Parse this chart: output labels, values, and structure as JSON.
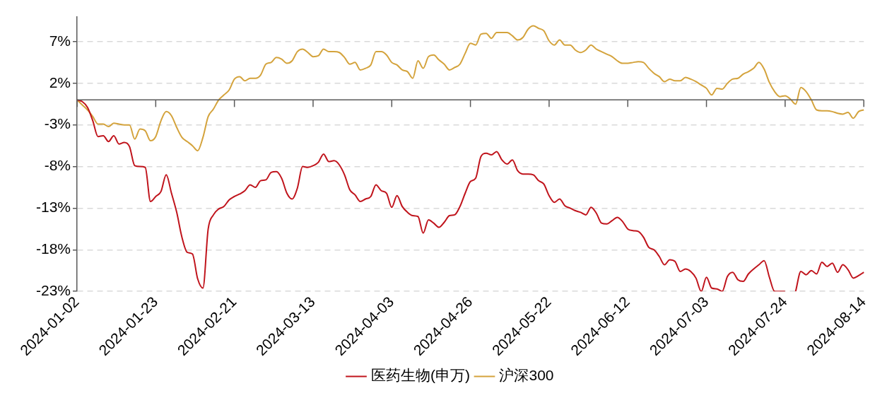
{
  "chart_data": {
    "type": "line",
    "categories": [
      "2024-01-02",
      null,
      null,
      null,
      null,
      null,
      null,
      null,
      null,
      null,
      null,
      null,
      null,
      null,
      null,
      "2024-01-23",
      null,
      null,
      null,
      null,
      null,
      null,
      null,
      null,
      null,
      null,
      null,
      null,
      null,
      null,
      "2024-02-21",
      null,
      null,
      null,
      null,
      null,
      null,
      null,
      null,
      null,
      null,
      null,
      null,
      null,
      null,
      "2024-03-13",
      null,
      null,
      null,
      null,
      null,
      null,
      null,
      null,
      null,
      null,
      null,
      null,
      null,
      null,
      "2024-04-03",
      null,
      null,
      null,
      null,
      null,
      null,
      null,
      null,
      null,
      null,
      null,
      null,
      null,
      null,
      "2024-04-26",
      null,
      null,
      null,
      null,
      null,
      null,
      null,
      null,
      null,
      null,
      null,
      null,
      null,
      null,
      "2024-05-22",
      null,
      null,
      null,
      null,
      null,
      null,
      null,
      null,
      null,
      null,
      null,
      null,
      null,
      null,
      "2024-06-12",
      null,
      null,
      null,
      null,
      null,
      null,
      null,
      null,
      null,
      null,
      null,
      null,
      null,
      null,
      "2024-07-03",
      null,
      null,
      null,
      null,
      null,
      null,
      null,
      null,
      null,
      null,
      null,
      null,
      null,
      null,
      "2024-07-24",
      null,
      null,
      null,
      null,
      null,
      null,
      null,
      null,
      null,
      null,
      null,
      null,
      null,
      null,
      "2024-08-14"
    ],
    "ylim": [
      -23,
      10
    ],
    "yticks": [
      {
        "value": -23,
        "label": "-23%"
      },
      {
        "value": -18,
        "label": "-18%"
      },
      {
        "value": -13,
        "label": "-13%"
      },
      {
        "value": -8,
        "label": "-8%"
      },
      {
        "value": -3,
        "label": "-3%"
      },
      {
        "value": 2,
        "label": "2%"
      },
      {
        "value": 7,
        "label": "7%"
      }
    ],
    "grid": "y",
    "legend": "bottom",
    "marker": "none",
    "line_style": "solid",
    "series": [
      {
        "name": "医药生物(申万)",
        "color": "#c0141c",
        "values": [
          0,
          -0.2,
          -0.9,
          -2.5,
          -4.4,
          -4.3,
          -5.0,
          -4.3,
          -5.3,
          -5.1,
          -5.6,
          -7.9,
          -8.0,
          -8.1,
          -12.2,
          -11.6,
          -11.0,
          -9.0,
          -11.2,
          -13.5,
          -16.5,
          -18.3,
          -18.5,
          -21.5,
          -22.6,
          -15.5,
          -13.8,
          -13.1,
          -12.8,
          -12.0,
          -11.6,
          -11.3,
          -10.9,
          -10.2,
          -10.5,
          -9.7,
          -9.6,
          -8.7,
          -8.6,
          -9.4,
          -11.2,
          -11.9,
          -10.6,
          -8.0,
          -8.1,
          -7.9,
          -7.5,
          -6.5,
          -7.4,
          -7.3,
          -7.8,
          -9.0,
          -10.8,
          -11.4,
          -12.2,
          -11.9,
          -11.6,
          -10.2,
          -10.9,
          -11.2,
          -12.9,
          -11.5,
          -12.8,
          -13.5,
          -13.9,
          -14.0,
          -16.0,
          -14.4,
          -14.8,
          -15.3,
          -14.7,
          -13.9,
          -13.8,
          -12.8,
          -11.2,
          -9.8,
          -9.4,
          -6.8,
          -6.4,
          -6.6,
          -6.2,
          -7.2,
          -7.7,
          -7.2,
          -8.5,
          -8.9,
          -8.9,
          -9.0,
          -9.7,
          -10.1,
          -11.5,
          -12.3,
          -11.9,
          -12.7,
          -13.0,
          -13.3,
          -13.5,
          -13.8,
          -12.9,
          -13.6,
          -14.8,
          -14.9,
          -14.5,
          -14.1,
          -14.6,
          -15.5,
          -15.7,
          -15.8,
          -16.5,
          -17.7,
          -18.0,
          -18.8,
          -19.8,
          -19.2,
          -19.4,
          -20.6,
          -20.3,
          -20.6,
          -21.4,
          -23,
          -21.3,
          -22.6,
          -22.7,
          -23,
          -21.2,
          -20.7,
          -21.6,
          -21.8,
          -20.9,
          -20.3,
          -19.8,
          -19.3,
          -21.3,
          -23,
          -23,
          -23,
          null,
          -23,
          -20.6,
          -21.0,
          -20.5,
          -20.9,
          -19.5,
          -20.0,
          -19.6,
          -20.7,
          -19.8,
          -20.4,
          -21.4,
          -21.1,
          -20.7
        ]
      },
      {
        "name": "沪深300",
        "color": "#d4a33c",
        "values": [
          0,
          -0.6,
          -1.2,
          -2.0,
          -2.9,
          -2.9,
          -3.2,
          -2.8,
          -2.9,
          -3.0,
          -3.0,
          -4.7,
          -3.5,
          -3.7,
          -4.9,
          -4.4,
          -2.5,
          -1.4,
          -1.9,
          -3.3,
          -4.5,
          -5.0,
          -5.5,
          -6.1,
          -4.5,
          -2.0,
          -1.1,
          0.0,
          0.6,
          1.2,
          2.5,
          2.8,
          2.3,
          2.6,
          2.6,
          3.0,
          4.3,
          4.5,
          5.1,
          4.9,
          4.4,
          4.7,
          5.8,
          6.1,
          5.7,
          5.2,
          5.3,
          6.1,
          5.8,
          5.8,
          5.7,
          5.1,
          4.3,
          4.5,
          3.6,
          3.8,
          4.2,
          5.8,
          5.8,
          5.4,
          4.5,
          4.2,
          3.6,
          3.4,
          2.6,
          4.7,
          3.8,
          5.2,
          5.4,
          4.8,
          4.3,
          3.6,
          3.9,
          4.3,
          5.6,
          6.8,
          6.6,
          7.9,
          8.0,
          7.4,
          8.1,
          8.1,
          8.1,
          7.7,
          7.2,
          7.5,
          8.5,
          8.9,
          8.6,
          8.3,
          7.1,
          6.6,
          7.2,
          6.6,
          6.6,
          6.0,
          5.7,
          6.0,
          6.6,
          6.1,
          5.8,
          5.5,
          5.2,
          4.7,
          4.4,
          4.4,
          4.5,
          4.6,
          4.5,
          3.8,
          3.2,
          2.8,
          2.2,
          2.5,
          2.3,
          2.3,
          2.7,
          2.5,
          2.2,
          1.8,
          1.4,
          0.6,
          1.4,
          1.3,
          2.0,
          2.5,
          2.6,
          3.1,
          3.4,
          3.8,
          4.5,
          3.7,
          2.1,
          1.0,
          0.4,
          0.5,
          0.1,
          -0.5,
          1.5,
          1.0,
          0.0,
          -1.2,
          -1.3,
          -1.3,
          -1.4,
          -1.6,
          -1.7,
          -1.5,
          -2.2,
          -1.4,
          -1.2
        ]
      }
    ]
  }
}
